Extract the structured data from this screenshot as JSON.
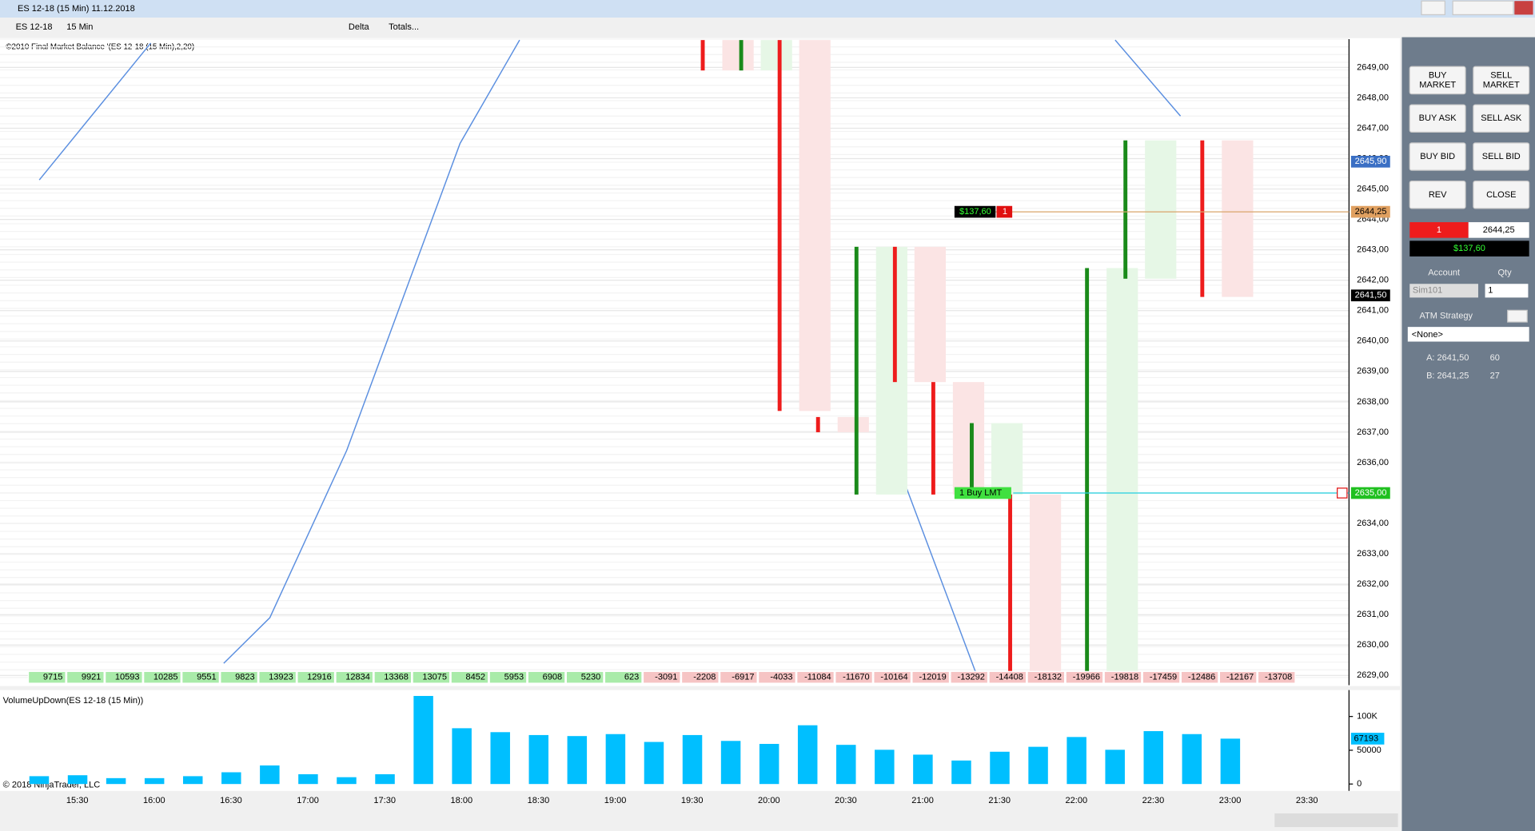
{
  "window": {
    "title": "ES 12-18 (15 Min)  11.12.2018"
  },
  "toolbar": {
    "instrument": "ES 12-18",
    "period": "15 Min",
    "style": "Delta",
    "totals": "Totals..."
  },
  "chart_data": [
    {
      "type": "footprint",
      "title": "©2010 Final Market Balance '(ES 12-18 (15 Min),2,20)",
      "ylim": [
        2628.68,
        2649.93
      ],
      "yticks": [
        {
          "value": 2629,
          "label": "2629,00"
        },
        {
          "value": 2630,
          "label": "2630,00"
        },
        {
          "value": 2631,
          "label": "2631,00"
        },
        {
          "value": 2632,
          "label": "2632,00"
        },
        {
          "value": 2633,
          "label": "2633,00"
        },
        {
          "value": 2634,
          "label": "2634,00"
        },
        {
          "value": 2635,
          "label": "2635,00"
        },
        {
          "value": 2636,
          "label": "2636,00"
        },
        {
          "value": 2637,
          "label": "2637,00"
        },
        {
          "value": 2638,
          "label": "2638,00"
        },
        {
          "value": 2639,
          "label": "2639,00"
        },
        {
          "value": 2640,
          "label": "2640,00"
        },
        {
          "value": 2641,
          "label": "2641,00"
        },
        {
          "value": 2642,
          "label": "2642,00"
        },
        {
          "value": 2643,
          "label": "2643,00"
        },
        {
          "value": 2644,
          "label": "2644,00"
        },
        {
          "value": 2645,
          "label": "2645,00"
        },
        {
          "value": 2646,
          "label": "2646,00"
        },
        {
          "value": 2647,
          "label": "2647,00"
        },
        {
          "value": 2648,
          "label": "2648,00"
        },
        {
          "value": 2649,
          "label": "2649,00"
        }
      ],
      "candles": [
        {
          "x": 17.5,
          "open": 2649.9,
          "close": 2648.9
        },
        {
          "x": 18.5,
          "open": 2648.9,
          "close": 2649.9
        },
        {
          "x": 19.5,
          "open": 2649.9,
          "close": 2637.7
        },
        {
          "x": 20.5,
          "open": 2637.5,
          "close": 2637.0
        },
        {
          "x": 21.5,
          "open": 2634.95,
          "close": 2643.1
        },
        {
          "x": 22.5,
          "open": 2643.1,
          "close": 2638.65
        },
        {
          "x": 23.5,
          "open": 2638.65,
          "close": 2634.95
        },
        {
          "x": 24.5,
          "open": 2634.95,
          "close": 2637.3
        },
        {
          "x": 25.5,
          "open": 2634.95,
          "close": 2628.95
        },
        {
          "x": 27.5,
          "open": 2628.95,
          "close": 2642.4
        },
        {
          "x": 28.5,
          "open": 2642.05,
          "close": 2646.6
        },
        {
          "x": 30.5,
          "open": 2646.6,
          "close": 2641.45
        }
      ],
      "line": {
        "name": "Final Market Balance",
        "color": "#5b8fe0",
        "x": [
          -0.2,
          2.7,
          null,
          4.6,
          5.8,
          7.8,
          10.75,
          12.3,
          null,
          22.3,
          24.2,
          null,
          27.8,
          29.5
        ],
        "values": [
          2645.3,
          2649.8,
          null,
          2629.4,
          2630.9,
          2636.4,
          2646.5,
          2649.9,
          null,
          2635.4,
          2629.0,
          null,
          2649.9,
          2647.4
        ]
      },
      "delta_totals": [
        9715,
        9921,
        10593,
        10285,
        9551,
        9823,
        13923,
        12916,
        12834,
        13368,
        13075,
        8452,
        5953,
        6908,
        5230,
        623,
        -3091,
        -2208,
        -6917,
        -4033,
        -11084,
        -11670,
        -10164,
        -12019,
        -13292,
        -14408,
        -18132,
        -19966,
        -19818,
        -17459,
        -12486,
        -12167,
        -13708
      ],
      "price_markers": [
        {
          "value": 2645.9,
          "label": "2645,90",
          "color": "#3a6fc4"
        },
        {
          "value": 2644.25,
          "label": "2644,25",
          "color": "#e0a060"
        },
        {
          "value": 2641.5,
          "label": "2641,50",
          "color": "#000000"
        },
        {
          "value": 2635.0,
          "label": "2635,00",
          "color": "#20c020"
        }
      ],
      "position_tag": {
        "pnl": "$137,60",
        "qty": "1",
        "value": 2644.25
      },
      "order_tag": {
        "text": "1  Buy LMT",
        "value": 2635.0
      }
    },
    {
      "type": "bar",
      "title": "VolumeUpDown(ES 12-18 (15 Min))",
      "color": "#00bfff",
      "values": [
        11600,
        13000,
        8700,
        8700,
        11600,
        17400,
        27500,
        14500,
        10100,
        14500,
        130400,
        82600,
        76800,
        72500,
        71000,
        73900,
        62300,
        72500,
        63800,
        59400,
        87000,
        58000,
        50700,
        43500,
        34800,
        47800,
        55100,
        69600,
        50700,
        78300,
        73900,
        67193,
        null
      ],
      "ylim": [
        -10145,
        139130
      ],
      "yticks": [
        0,
        50000,
        {
          "value": 100000,
          "label": "100K"
        }
      ]
    }
  ],
  "x_axis": {
    "labels": [
      "15:30",
      "16:00",
      "16:30",
      "17:00",
      "17:30",
      "18:00",
      "18:30",
      "19:00",
      "19:30",
      "20:00",
      "20:30",
      "21:00",
      "21:30",
      "22:00",
      "22:30",
      "23:00",
      "23:30"
    ]
  },
  "copyright": "© 2018 NinjaTrader, LLC",
  "order_panel": {
    "buttons": [
      "BUY\nMARKET",
      "SELL\nMARKET",
      "BUY ASK",
      "SELL ASK",
      "BUY BID",
      "SELL BID",
      "REV",
      "CLOSE"
    ],
    "position_qty": "1",
    "position_price": "2644,25",
    "pnl": "$137,60",
    "account_label": "Account",
    "qty_label": "Qty",
    "account": "Sim101",
    "qty": "1",
    "atm_label": "ATM Strategy",
    "atm": "<None>",
    "ask": "A: 2641,50",
    "ask_size": "60",
    "bid": "B: 2641,25",
    "bid_size": "27"
  }
}
